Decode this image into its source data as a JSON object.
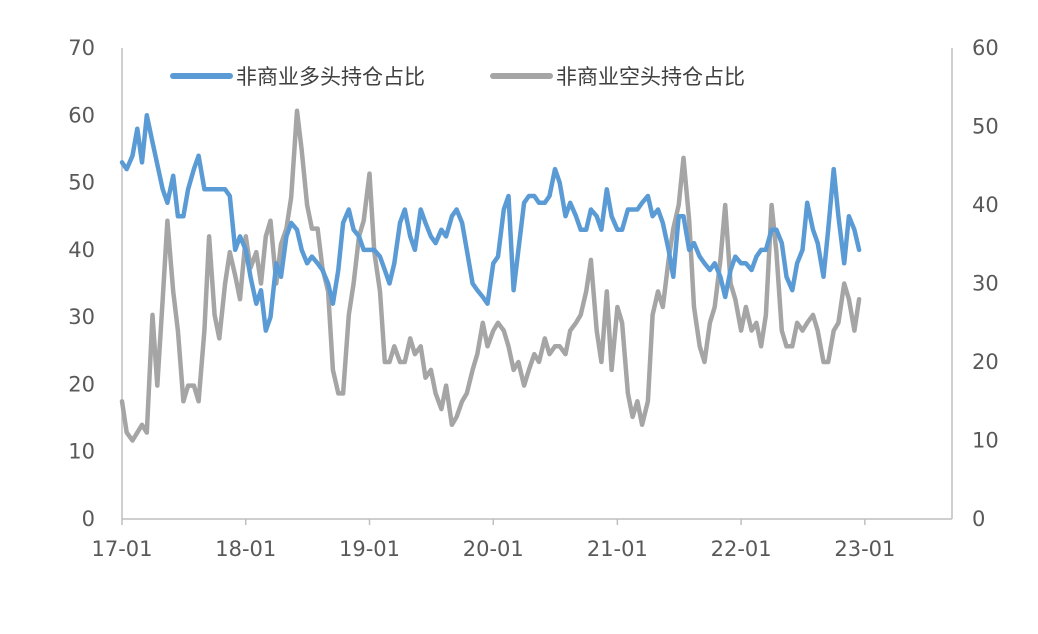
{
  "chart_data": {
    "type": "line",
    "title": "",
    "grid": false,
    "legend_position": "top",
    "x": [
      "17-01",
      "18-01",
      "19-01",
      "20-01",
      "21-01",
      "22-01",
      "23-01"
    ],
    "y_left": {
      "label": "",
      "range": [
        0,
        70
      ],
      "ticks": [
        "0",
        "10",
        "20",
        "30",
        "40",
        "50",
        "60",
        "70"
      ]
    },
    "y_right": {
      "label": "",
      "range": [
        0,
        60
      ],
      "ticks": [
        "0",
        "10",
        "20",
        "30",
        "40",
        "50",
        "60"
      ]
    },
    "series": [
      {
        "name": "非商业多头持仓占比",
        "axis": "left",
        "color": "#5b9bd5",
        "points": [
          [
            "2017-01",
            53
          ],
          [
            "2017-01-15",
            52
          ],
          [
            "2017-02",
            54
          ],
          [
            "2017-02-15",
            58
          ],
          [
            "2017-03",
            53
          ],
          [
            "2017-03-15",
            60
          ],
          [
            "2017-04",
            56
          ],
          [
            "2017-05",
            49
          ],
          [
            "2017-05-15",
            47
          ],
          [
            "2017-06",
            51
          ],
          [
            "2017-06-15",
            45
          ],
          [
            "2017-07",
            45
          ],
          [
            "2017-07-15",
            49
          ],
          [
            "2017-08",
            52
          ],
          [
            "2017-08-15",
            54
          ],
          [
            "2017-09",
            49
          ],
          [
            "2017-10",
            49
          ],
          [
            "2017-11",
            49
          ],
          [
            "2017-11-15",
            48
          ],
          [
            "2017-12",
            40
          ],
          [
            "2017-12-15",
            42
          ],
          [
            "2018-01",
            40
          ],
          [
            "2018-01-15",
            36
          ],
          [
            "2018-02",
            32
          ],
          [
            "2018-02-15",
            34
          ],
          [
            "2018-03",
            28
          ],
          [
            "2018-03-15",
            30
          ],
          [
            "2018-04",
            38
          ],
          [
            "2018-04-15",
            36
          ],
          [
            "2018-05",
            42
          ],
          [
            "2018-05-15",
            44
          ],
          [
            "2018-06",
            43
          ],
          [
            "2018-06-15",
            40
          ],
          [
            "2018-07",
            38
          ],
          [
            "2018-07-15",
            39
          ],
          [
            "2018-08",
            38
          ],
          [
            "2018-08-15",
            37
          ],
          [
            "2018-09",
            35
          ],
          [
            "2018-09-15",
            32
          ],
          [
            "2018-10",
            37
          ],
          [
            "2018-10-15",
            44
          ],
          [
            "2018-11",
            46
          ],
          [
            "2018-11-15",
            43
          ],
          [
            "2018-12",
            42
          ],
          [
            "2018-12-15",
            40
          ],
          [
            "2019-01",
            40
          ],
          [
            "2019-01-15",
            40
          ],
          [
            "2019-02",
            39
          ],
          [
            "2019-02-15",
            37
          ],
          [
            "2019-03",
            35
          ],
          [
            "2019-03-15",
            38
          ],
          [
            "2019-04",
            44
          ],
          [
            "2019-04-15",
            46
          ],
          [
            "2019-05",
            42
          ],
          [
            "2019-05-15",
            40
          ],
          [
            "2019-06",
            46
          ],
          [
            "2019-06-15",
            44
          ],
          [
            "2019-07",
            42
          ],
          [
            "2019-07-15",
            41
          ],
          [
            "2019-08",
            43
          ],
          [
            "2019-08-15",
            42
          ],
          [
            "2019-09",
            45
          ],
          [
            "2019-09-15",
            46
          ],
          [
            "2019-10",
            44
          ],
          [
            "2019-10-15",
            40
          ],
          [
            "2019-11",
            35
          ],
          [
            "2019-11-15",
            34
          ],
          [
            "2019-12",
            33
          ],
          [
            "2019-12-15",
            32
          ],
          [
            "2020-01",
            38
          ],
          [
            "2020-01-15",
            39
          ],
          [
            "2020-02",
            46
          ],
          [
            "2020-02-15",
            48
          ],
          [
            "2020-03",
            34
          ],
          [
            "2020-03-15",
            40
          ],
          [
            "2020-04",
            47
          ],
          [
            "2020-04-15",
            48
          ],
          [
            "2020-05",
            48
          ],
          [
            "2020-05-15",
            47
          ],
          [
            "2020-06",
            47
          ],
          [
            "2020-06-15",
            48
          ],
          [
            "2020-07",
            52
          ],
          [
            "2020-07-15",
            50
          ],
          [
            "2020-08",
            45
          ],
          [
            "2020-08-15",
            47
          ],
          [
            "2020-09",
            45
          ],
          [
            "2020-09-15",
            43
          ],
          [
            "2020-10",
            43
          ],
          [
            "2020-10-15",
            46
          ],
          [
            "2020-11",
            45
          ],
          [
            "2020-11-15",
            43
          ],
          [
            "2020-12",
            49
          ],
          [
            "2020-12-15",
            45
          ],
          [
            "2021-01",
            43
          ],
          [
            "2021-01-15",
            43
          ],
          [
            "2021-02",
            46
          ],
          [
            "2021-02-15",
            46
          ],
          [
            "2021-03",
            46
          ],
          [
            "2021-03-15",
            47
          ],
          [
            "2021-04",
            48
          ],
          [
            "2021-04-15",
            45
          ],
          [
            "2021-05",
            46
          ],
          [
            "2021-05-15",
            44
          ],
          [
            "2021-06",
            40
          ],
          [
            "2021-06-15",
            36
          ],
          [
            "2021-07",
            45
          ],
          [
            "2021-07-15",
            45
          ],
          [
            "2021-08",
            40
          ],
          [
            "2021-08-15",
            41
          ],
          [
            "2021-09",
            39
          ],
          [
            "2021-09-15",
            38
          ],
          [
            "2021-10",
            37
          ],
          [
            "2021-10-15",
            38
          ],
          [
            "2021-11",
            36
          ],
          [
            "2021-11-15",
            33
          ],
          [
            "2021-12",
            37
          ],
          [
            "2021-12-15",
            39
          ],
          [
            "2022-01",
            38
          ],
          [
            "2022-01-15",
            38
          ],
          [
            "2022-02",
            37
          ],
          [
            "2022-02-15",
            39
          ],
          [
            "2022-03",
            40
          ],
          [
            "2022-03-15",
            40
          ],
          [
            "2022-04",
            43
          ],
          [
            "2022-04-15",
            43
          ],
          [
            "2022-05",
            41
          ],
          [
            "2022-05-15",
            36
          ],
          [
            "2022-06",
            34
          ],
          [
            "2022-06-15",
            38
          ],
          [
            "2022-07",
            40
          ],
          [
            "2022-07-15",
            47
          ],
          [
            "2022-08",
            43
          ],
          [
            "2022-08-15",
            41
          ],
          [
            "2022-09",
            36
          ],
          [
            "2022-09-15",
            43
          ],
          [
            "2022-10",
            52
          ],
          [
            "2022-10-15",
            45
          ],
          [
            "2022-11",
            38
          ],
          [
            "2022-11-15",
            45
          ],
          [
            "2022-12",
            43
          ],
          [
            "2022-12-15",
            40
          ]
        ]
      },
      {
        "name": "非商业空头持仓占比",
        "axis": "right",
        "color": "#a5a5a5",
        "points": [
          [
            "2017-01",
            15
          ],
          [
            "2017-01-15",
            11
          ],
          [
            "2017-02",
            10
          ],
          [
            "2017-02-15",
            11
          ],
          [
            "2017-03",
            12
          ],
          [
            "2017-03-15",
            11
          ],
          [
            "2017-04",
            26
          ],
          [
            "2017-04-15",
            17
          ],
          [
            "2017-05",
            28
          ],
          [
            "2017-05-15",
            38
          ],
          [
            "2017-06",
            29
          ],
          [
            "2017-06-15",
            24
          ],
          [
            "2017-07",
            15
          ],
          [
            "2017-07-15",
            17
          ],
          [
            "2017-08",
            17
          ],
          [
            "2017-08-15",
            15
          ],
          [
            "2017-09",
            24
          ],
          [
            "2017-09-15",
            36
          ],
          [
            "2017-10",
            26
          ],
          [
            "2017-10-15",
            23
          ],
          [
            "2017-11",
            30
          ],
          [
            "2017-11-15",
            34
          ],
          [
            "2017-12",
            31
          ],
          [
            "2017-12-15",
            28
          ],
          [
            "2018-01",
            36
          ],
          [
            "2018-01-15",
            32
          ],
          [
            "2018-02",
            34
          ],
          [
            "2018-02-15",
            30
          ],
          [
            "2018-03",
            36
          ],
          [
            "2018-03-15",
            38
          ],
          [
            "2018-04",
            30
          ],
          [
            "2018-04-15",
            35
          ],
          [
            "2018-05",
            37
          ],
          [
            "2018-05-15",
            41
          ],
          [
            "2018-06",
            52
          ],
          [
            "2018-06-15",
            47
          ],
          [
            "2018-07",
            40
          ],
          [
            "2018-07-15",
            37
          ],
          [
            "2018-08",
            37
          ],
          [
            "2018-08-15",
            32
          ],
          [
            "2018-09",
            29
          ],
          [
            "2018-09-15",
            19
          ],
          [
            "2018-10",
            16
          ],
          [
            "2018-10-15",
            16
          ],
          [
            "2018-11",
            26
          ],
          [
            "2018-11-15",
            30
          ],
          [
            "2018-12",
            36
          ],
          [
            "2018-12-15",
            38
          ],
          [
            "2019-01",
            44
          ],
          [
            "2019-01-15",
            34
          ],
          [
            "2019-02",
            29
          ],
          [
            "2019-02-15",
            20
          ],
          [
            "2019-03",
            20
          ],
          [
            "2019-03-15",
            22
          ],
          [
            "2019-04",
            20
          ],
          [
            "2019-04-15",
            20
          ],
          [
            "2019-05",
            23
          ],
          [
            "2019-05-15",
            21
          ],
          [
            "2019-06",
            22
          ],
          [
            "2019-06-15",
            18
          ],
          [
            "2019-07",
            19
          ],
          [
            "2019-07-15",
            16
          ],
          [
            "2019-08",
            14
          ],
          [
            "2019-08-15",
            17
          ],
          [
            "2019-09",
            12
          ],
          [
            "2019-09-15",
            13
          ],
          [
            "2019-10",
            15
          ],
          [
            "2019-10-15",
            16
          ],
          [
            "2019-11",
            19
          ],
          [
            "2019-11-15",
            21
          ],
          [
            "2019-12",
            25
          ],
          [
            "2019-12-15",
            22
          ],
          [
            "2020-01",
            24
          ],
          [
            "2020-01-15",
            25
          ],
          [
            "2020-02",
            24
          ],
          [
            "2020-02-15",
            22
          ],
          [
            "2020-03",
            19
          ],
          [
            "2020-03-15",
            20
          ],
          [
            "2020-04",
            17
          ],
          [
            "2020-04-15",
            19
          ],
          [
            "2020-05",
            21
          ],
          [
            "2020-05-15",
            20
          ],
          [
            "2020-06",
            23
          ],
          [
            "2020-06-15",
            21
          ],
          [
            "2020-07",
            22
          ],
          [
            "2020-07-15",
            22
          ],
          [
            "2020-08",
            21
          ],
          [
            "2020-08-15",
            24
          ],
          [
            "2020-09",
            25
          ],
          [
            "2020-09-15",
            26
          ],
          [
            "2020-10",
            29
          ],
          [
            "2020-10-15",
            33
          ],
          [
            "2020-11",
            24
          ],
          [
            "2020-11-15",
            20
          ],
          [
            "2020-12",
            29
          ],
          [
            "2020-12-15",
            19
          ],
          [
            "2021-01",
            27
          ],
          [
            "2021-01-15",
            25
          ],
          [
            "2021-02",
            16
          ],
          [
            "2021-02-15",
            13
          ],
          [
            "2021-03",
            15
          ],
          [
            "2021-03-15",
            12
          ],
          [
            "2021-04",
            15
          ],
          [
            "2021-04-15",
            26
          ],
          [
            "2021-05",
            29
          ],
          [
            "2021-05-15",
            27
          ],
          [
            "2021-06",
            33
          ],
          [
            "2021-06-15",
            37
          ],
          [
            "2021-07",
            40
          ],
          [
            "2021-07-15",
            46
          ],
          [
            "2021-08",
            38
          ],
          [
            "2021-08-15",
            27
          ],
          [
            "2021-09",
            22
          ],
          [
            "2021-09-15",
            20
          ],
          [
            "2021-10",
            25
          ],
          [
            "2021-10-15",
            27
          ],
          [
            "2021-11",
            33
          ],
          [
            "2021-11-15",
            40
          ],
          [
            "2021-12",
            30
          ],
          [
            "2021-12-15",
            28
          ],
          [
            "2022-01",
            24
          ],
          [
            "2022-01-15",
            27
          ],
          [
            "2022-02",
            24
          ],
          [
            "2022-02-15",
            25
          ],
          [
            "2022-03",
            22
          ],
          [
            "2022-03-15",
            26
          ],
          [
            "2022-04",
            40
          ],
          [
            "2022-04-15",
            34
          ],
          [
            "2022-05",
            24
          ],
          [
            "2022-05-15",
            22
          ],
          [
            "2022-06",
            22
          ],
          [
            "2022-06-15",
            25
          ],
          [
            "2022-07",
            24
          ],
          [
            "2022-07-15",
            25
          ],
          [
            "2022-08",
            26
          ],
          [
            "2022-08-15",
            24
          ],
          [
            "2022-09",
            20
          ],
          [
            "2022-09-15",
            20
          ],
          [
            "2022-10",
            24
          ],
          [
            "2022-10-15",
            25
          ],
          [
            "2022-11",
            30
          ],
          [
            "2022-11-15",
            28
          ],
          [
            "2022-12",
            24
          ],
          [
            "2022-12-15",
            28
          ]
        ]
      }
    ]
  }
}
